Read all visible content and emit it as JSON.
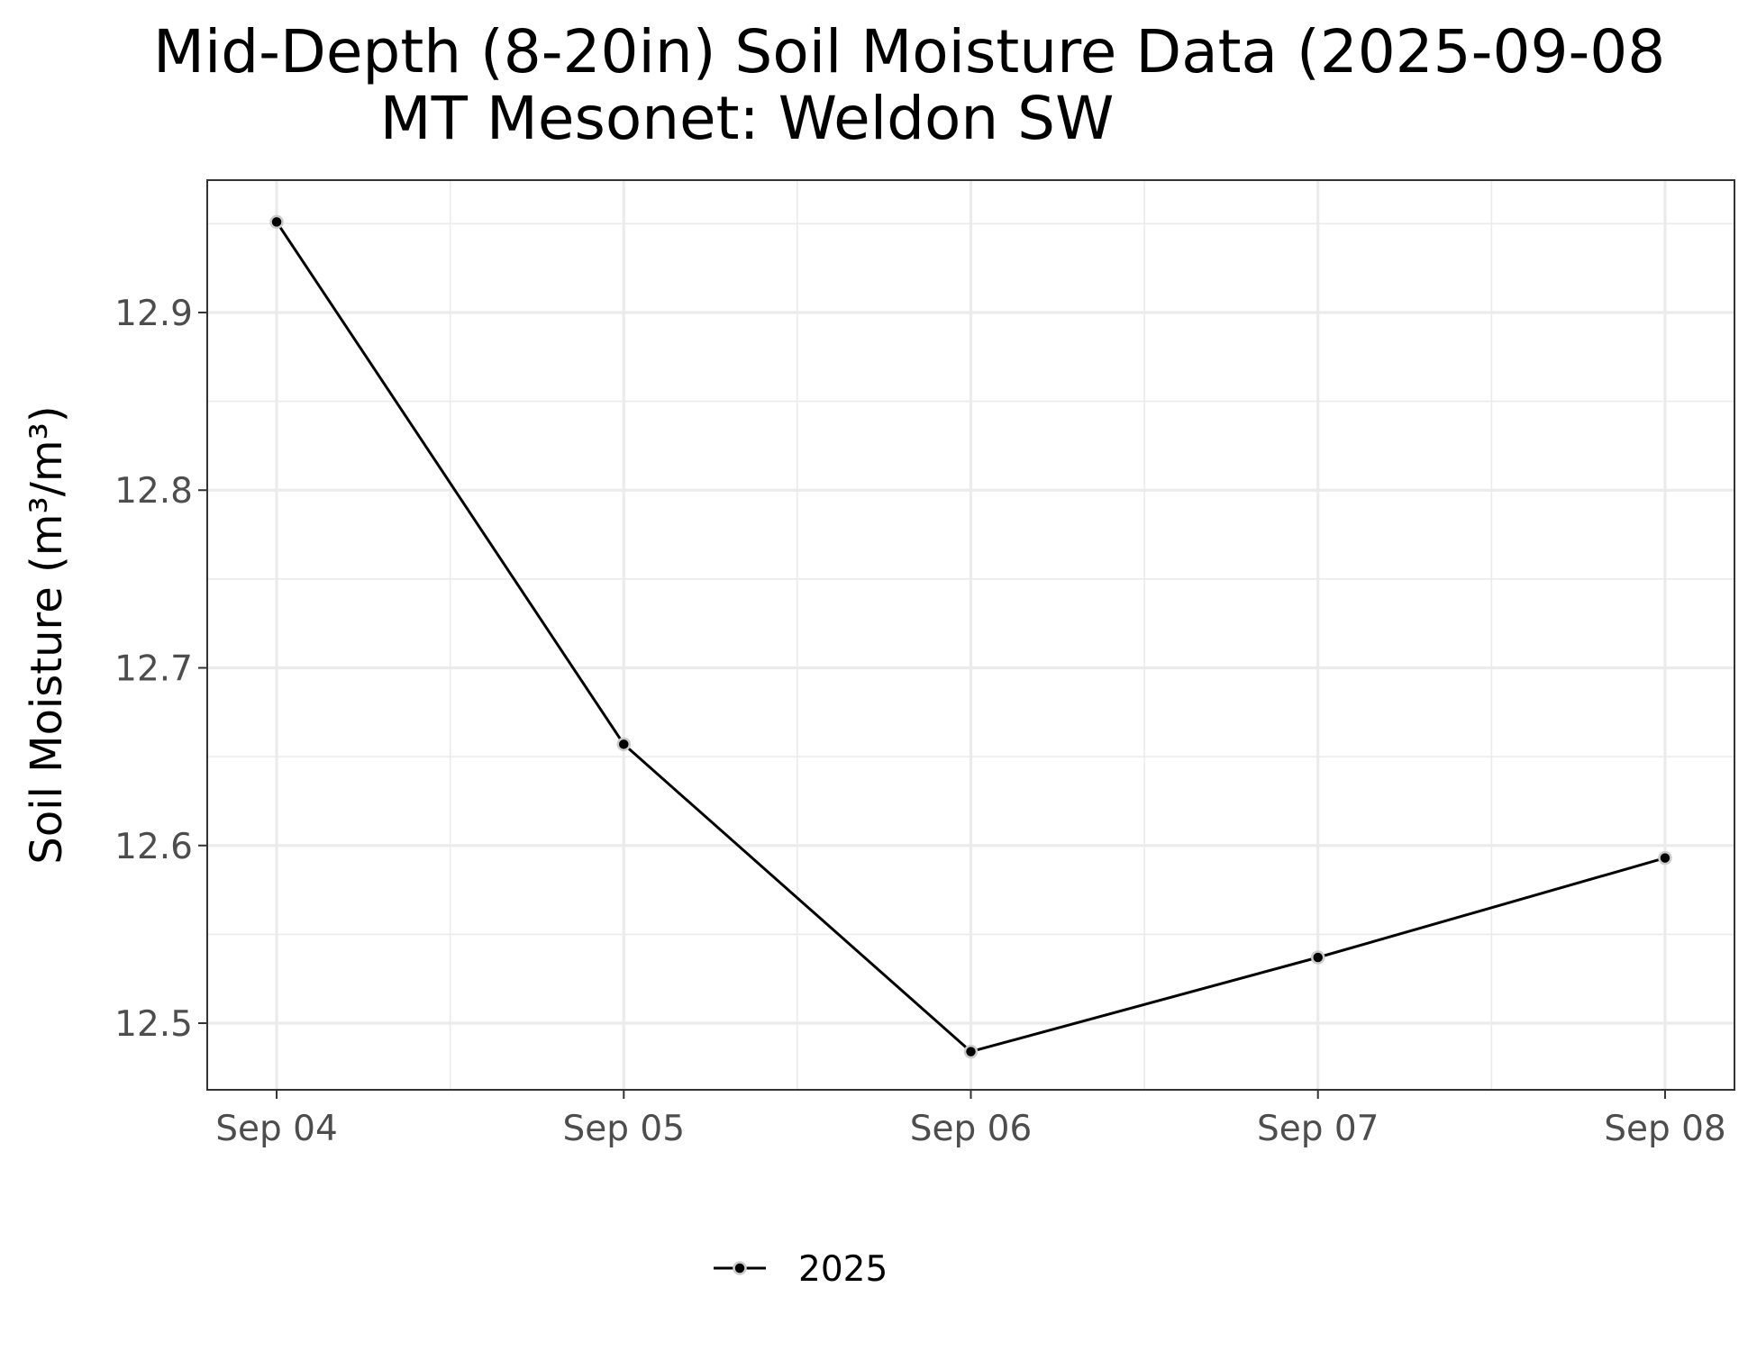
{
  "chart_data": {
    "type": "line",
    "title": "Mid-Depth (8-20in) Soil Moisture Data (2025-09-08",
    "subtitle": "MT Mesonet: Weldon SW",
    "xlabel": "",
    "ylabel": "Soil Moisture (m³/m³)",
    "categories": [
      "Sep 04",
      "Sep 05",
      "Sep 06",
      "Sep 07",
      "Sep 08"
    ],
    "xlim": [
      -0.2,
      4.2
    ],
    "ylim": [
      12.4625,
      12.9745
    ],
    "y_ticks": [
      12.5,
      12.6,
      12.7,
      12.8,
      12.9
    ],
    "y_tick_labels": [
      "12.5",
      "12.6",
      "12.7",
      "12.8",
      "12.9"
    ],
    "series": [
      {
        "name": "2025",
        "values": [
          12.951,
          12.657,
          12.484,
          12.537,
          12.593
        ],
        "color": "#000000"
      }
    ],
    "grid": true,
    "legend_position": "bottom"
  }
}
